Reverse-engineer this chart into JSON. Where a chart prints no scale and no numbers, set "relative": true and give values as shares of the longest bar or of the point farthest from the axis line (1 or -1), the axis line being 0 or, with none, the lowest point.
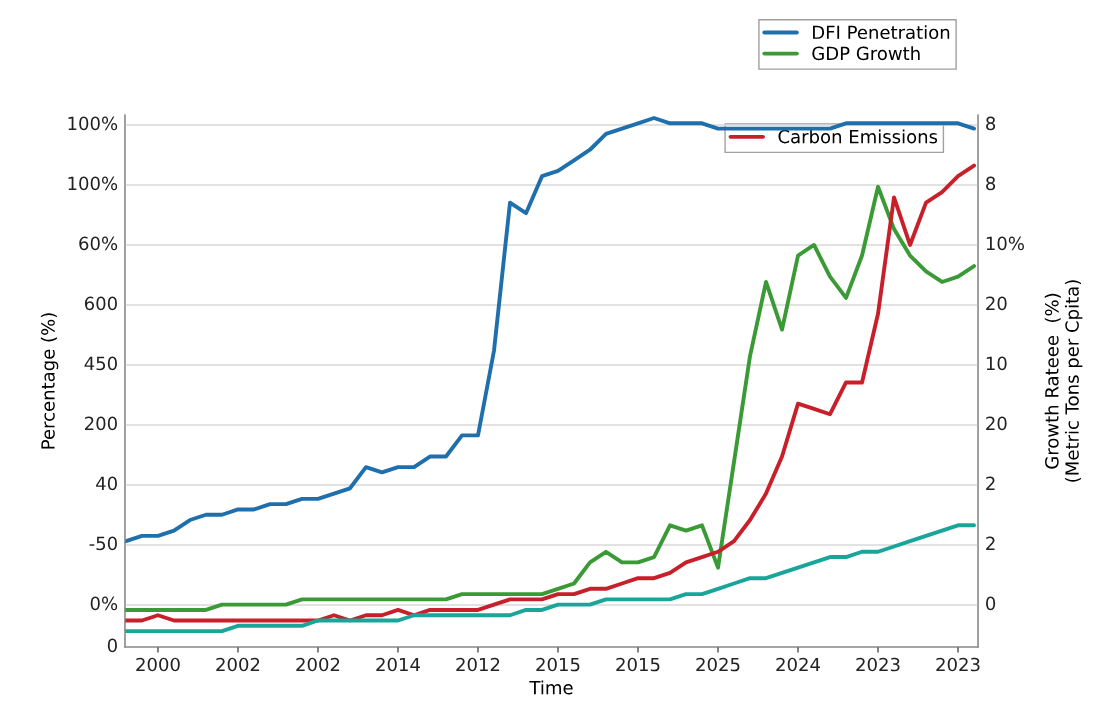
{
  "chart_data": {
    "type": "line",
    "xlabel": "Time",
    "ylabel": "Percentage (%)",
    "y2label": "Growth Rateee  (%)\n(Metric Tons per Cpita)",
    "relative": true,
    "grid": "y",
    "legend": "top right",
    "line_style": "solid",
    "marker": "none",
    "annotations": [
      "100%\n100%\n60%\n600\n450\n200\n40\n-50\n0%\n0",
      "8\n8\n10%\n20\n10\n20\n2\n2\n0"
    ],
    "categories": [
      null,
      null,
      "2000",
      null,
      null,
      null,
      null,
      "2002",
      null,
      null,
      null,
      null,
      "2002",
      null,
      null,
      null,
      null,
      "2014",
      null,
      null,
      null,
      null,
      "2012",
      null,
      null,
      null,
      null,
      "2015",
      null,
      null,
      null,
      null,
      "2015",
      null,
      null,
      null,
      null,
      "2025",
      null,
      null,
      null,
      null,
      "2024",
      null,
      null,
      null,
      null,
      "2023",
      null,
      null,
      null,
      null,
      "2023",
      null
    ],
    "series": [
      {
        "name": "DFI Penetration",
        "color": "#1f6fad",
        "values": [
          0.2,
          0.21,
          0.21,
          0.22,
          0.24,
          0.25,
          0.25,
          0.26,
          0.26,
          0.27,
          0.27,
          0.28,
          0.28,
          0.29,
          0.3,
          0.34,
          0.33,
          0.34,
          0.34,
          0.36,
          0.36,
          0.4,
          0.4,
          0.56,
          0.84,
          0.82,
          0.89,
          0.9,
          0.92,
          0.94,
          0.97,
          0.98,
          0.99,
          1.0,
          0.99,
          0.99,
          0.99,
          0.98,
          0.98,
          0.98,
          0.98,
          0.98,
          0.98,
          0.98,
          0.98,
          0.99,
          0.99,
          0.99,
          0.99,
          0.99,
          0.99,
          0.99,
          0.99,
          0.98
        ]
      },
      {
        "name": "GDP Growth",
        "color": "#3a9a35",
        "values": [
          0.07,
          0.07,
          0.07,
          0.07,
          0.07,
          0.07,
          0.08,
          0.08,
          0.08,
          0.08,
          0.08,
          0.09,
          0.09,
          0.09,
          0.09,
          0.09,
          0.09,
          0.09,
          0.09,
          0.09,
          0.09,
          0.1,
          0.1,
          0.1,
          0.1,
          0.1,
          0.1,
          0.11,
          0.12,
          0.16,
          0.18,
          0.16,
          0.16,
          0.17,
          0.23,
          0.22,
          0.23,
          0.15,
          0.35,
          0.55,
          0.69,
          0.6,
          0.74,
          0.76,
          0.7,
          0.66,
          0.74,
          0.87,
          0.79,
          0.74,
          0.71,
          0.69,
          0.7,
          0.72
        ]
      },
      {
        "name": "Carbon Emissions",
        "color": "#c8202a",
        "values": [
          0.05,
          0.05,
          0.06,
          0.05,
          0.05,
          0.05,
          0.05,
          0.05,
          0.05,
          0.05,
          0.05,
          0.05,
          0.05,
          0.06,
          0.05,
          0.06,
          0.06,
          0.07,
          0.06,
          0.07,
          0.07,
          0.07,
          0.07,
          0.08,
          0.09,
          0.09,
          0.09,
          0.1,
          0.1,
          0.11,
          0.11,
          0.12,
          0.13,
          0.13,
          0.14,
          0.16,
          0.17,
          0.18,
          0.2,
          0.24,
          0.29,
          0.36,
          0.46,
          0.45,
          0.44,
          0.5,
          0.5,
          0.63,
          0.85,
          0.76,
          0.84,
          0.86,
          0.89,
          0.91
        ]
      },
      {
        "color": "#1aa59a",
        "values": [
          0.03,
          0.03,
          0.03,
          0.03,
          0.03,
          0.03,
          0.03,
          0.04,
          0.04,
          0.04,
          0.04,
          0.04,
          0.05,
          0.05,
          0.05,
          0.05,
          0.05,
          0.05,
          0.06,
          0.06,
          0.06,
          0.06,
          0.06,
          0.06,
          0.06,
          0.07,
          0.07,
          0.08,
          0.08,
          0.08,
          0.09,
          0.09,
          0.09,
          0.09,
          0.09,
          0.1,
          0.1,
          0.11,
          0.12,
          0.13,
          0.13,
          0.14,
          0.15,
          0.16,
          0.17,
          0.17,
          0.18,
          0.18,
          0.19,
          0.2,
          0.21,
          0.22,
          0.23,
          0.23
        ]
      }
    ]
  }
}
